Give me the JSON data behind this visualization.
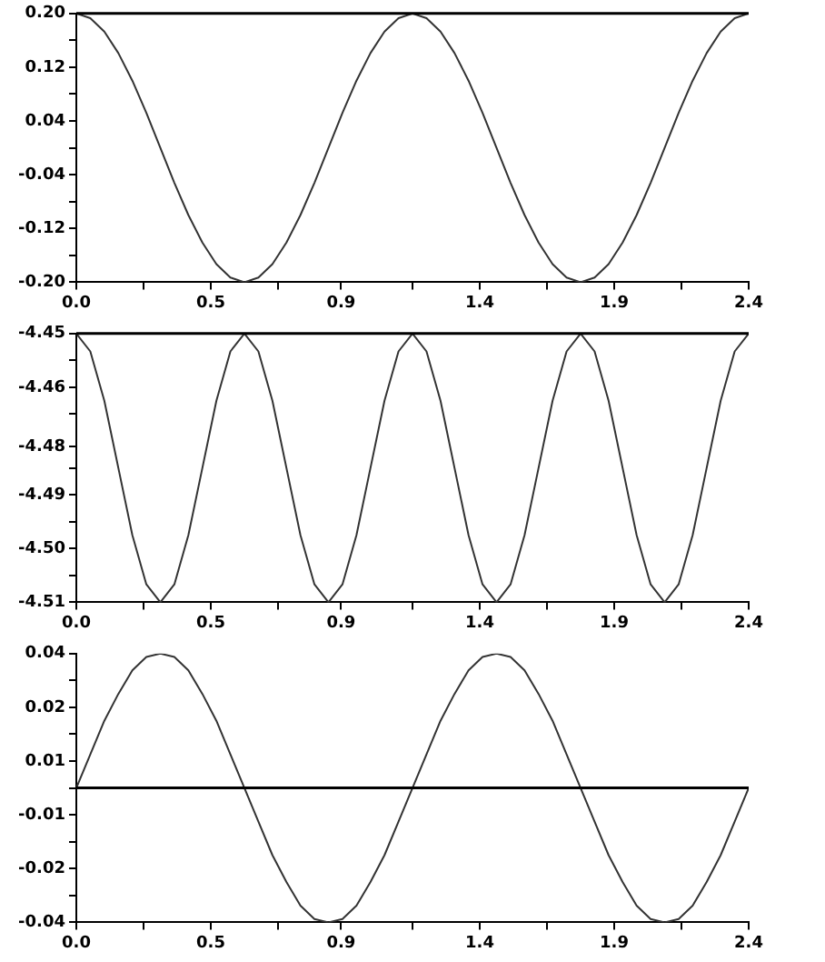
{
  "chart_data": [
    {
      "type": "line",
      "x": [
        0,
        0.05,
        0.1,
        0.15,
        0.2,
        0.25,
        0.3,
        0.35,
        0.4,
        0.45,
        0.5,
        0.55,
        0.6,
        0.65,
        0.7,
        0.75,
        0.8,
        0.85,
        0.9,
        0.95,
        1.0,
        1.05,
        1.1,
        1.15,
        1.2,
        1.25,
        1.3,
        1.35,
        1.4,
        1.45,
        1.5,
        1.55,
        1.6,
        1.65,
        1.7,
        1.75,
        1.8,
        1.85,
        1.9,
        1.95,
        2.0,
        2.05,
        2.1,
        2.15,
        2.2,
        2.25,
        2.3,
        2.35,
        2.4
      ],
      "series": [
        {
          "color": "#333333",
          "values": [
            0.2,
            0.193,
            0.173,
            0.141,
            0.1,
            0.052,
            0,
            -0.052,
            -0.1,
            -0.141,
            -0.173,
            -0.193,
            -0.2,
            -0.193,
            -0.173,
            -0.141,
            -0.1,
            -0.052,
            0,
            0.052,
            0.1,
            0.141,
            0.173,
            0.193,
            0.2,
            0.193,
            0.173,
            0.141,
            0.1,
            0.052,
            0,
            -0.052,
            -0.1,
            -0.141,
            -0.173,
            -0.193,
            -0.2,
            -0.193,
            -0.173,
            -0.141,
            -0.1,
            -0.052,
            0,
            0.052,
            0.1,
            0.141,
            0.173,
            0.193,
            0.2
          ]
        }
      ],
      "xlim": [
        0,
        2.4
      ],
      "xticks": [
        {
          "value": 0,
          "label": "0.0"
        },
        {
          "value": 0.24,
          "label": null
        },
        {
          "value": 0.48,
          "label": "0.5"
        },
        {
          "value": 0.72,
          "label": null
        },
        {
          "value": 0.945,
          "label": "0.9"
        },
        {
          "value": 1.2,
          "label": null
        },
        {
          "value": 1.44,
          "label": "1.4"
        },
        {
          "value": 1.68,
          "label": null
        },
        {
          "value": 1.92,
          "label": "1.9"
        },
        {
          "value": 2.16,
          "label": null
        },
        {
          "value": 2.4,
          "label": "2.4"
        }
      ],
      "ylim": [
        -0.2,
        0.2
      ],
      "yticks": [
        {
          "value": -0.2,
          "label": "-0.20"
        },
        {
          "value": -0.16,
          "label": null
        },
        {
          "value": -0.12,
          "label": "-0.12"
        },
        {
          "value": -0.08,
          "label": null
        },
        {
          "value": -0.04,
          "label": "-0.04"
        },
        {
          "value": 0,
          "label": null
        },
        {
          "value": 0.04,
          "label": "0.04"
        },
        {
          "value": 0.08,
          "label": null
        },
        {
          "value": 0.12,
          "label": "0.12"
        },
        {
          "value": 0.16,
          "label": null
        },
        {
          "value": 0.2,
          "label": "0.20"
        }
      ],
      "ref_lines": [
        {
          "axis": "y",
          "value": 0.2,
          "color": "#000000"
        }
      ],
      "grid": false,
      "legend": false
    },
    {
      "type": "line",
      "x": [
        0,
        0.05,
        0.1,
        0.15,
        0.2,
        0.25,
        0.3,
        0.35,
        0.4,
        0.45,
        0.5,
        0.55,
        0.6,
        0.65,
        0.7,
        0.75,
        0.8,
        0.85,
        0.9,
        0.95,
        1.0,
        1.05,
        1.1,
        1.15,
        1.2,
        1.25,
        1.3,
        1.35,
        1.4,
        1.45,
        1.5,
        1.55,
        1.6,
        1.65,
        1.7,
        1.75,
        1.8,
        1.85,
        1.9,
        1.95,
        2.0,
        2.05,
        2.1,
        2.15,
        2.2,
        2.25,
        2.3,
        2.35,
        2.4
      ],
      "series": [
        {
          "color": "#333333",
          "values": [
            -4.45,
            -4.454,
            -4.465,
            -4.48,
            -4.495,
            -4.506,
            -4.51,
            -4.506,
            -4.495,
            -4.48,
            -4.465,
            -4.454,
            -4.45,
            -4.454,
            -4.465,
            -4.48,
            -4.495,
            -4.506,
            -4.51,
            -4.506,
            -4.495,
            -4.48,
            -4.465,
            -4.454,
            -4.45,
            -4.454,
            -4.465,
            -4.48,
            -4.495,
            -4.506,
            -4.51,
            -4.506,
            -4.495,
            -4.48,
            -4.465,
            -4.454,
            -4.45,
            -4.454,
            -4.465,
            -4.48,
            -4.495,
            -4.506,
            -4.51,
            -4.506,
            -4.495,
            -4.48,
            -4.465,
            -4.454,
            -4.45
          ]
        }
      ],
      "xlim": [
        0,
        2.4
      ],
      "xticks": [
        {
          "value": 0,
          "label": "0.0"
        },
        {
          "value": 0.24,
          "label": null
        },
        {
          "value": 0.48,
          "label": "0.5"
        },
        {
          "value": 0.72,
          "label": null
        },
        {
          "value": 0.945,
          "label": "0.9"
        },
        {
          "value": 1.2,
          "label": null
        },
        {
          "value": 1.44,
          "label": "1.4"
        },
        {
          "value": 1.68,
          "label": null
        },
        {
          "value": 1.92,
          "label": "1.9"
        },
        {
          "value": 2.16,
          "label": null
        },
        {
          "value": 2.4,
          "label": "2.4"
        }
      ],
      "ylim": [
        -4.51,
        -4.45
      ],
      "yticks": [
        {
          "value": -4.51,
          "label": "-4.51"
        },
        {
          "value": -4.504,
          "label": null
        },
        {
          "value": -4.498,
          "label": "-4.50"
        },
        {
          "value": -4.492,
          "label": null
        },
        {
          "value": -4.486,
          "label": "-4.49"
        },
        {
          "value": -4.48,
          "label": null
        },
        {
          "value": -4.4752,
          "label": "-4.48"
        },
        {
          "value": -4.468,
          "label": null
        },
        {
          "value": -4.462,
          "label": "-4.46"
        },
        {
          "value": -4.456,
          "label": null
        },
        {
          "value": -4.45,
          "label": "-4.45"
        }
      ],
      "ref_lines": [
        {
          "axis": "y",
          "value": -4.45,
          "color": "#000000"
        }
      ],
      "grid": false,
      "legend": false
    },
    {
      "type": "line",
      "x": [
        0,
        0.05,
        0.1,
        0.15,
        0.2,
        0.25,
        0.3,
        0.35,
        0.4,
        0.45,
        0.5,
        0.55,
        0.6,
        0.65,
        0.7,
        0.75,
        0.8,
        0.85,
        0.9,
        0.95,
        1.0,
        1.05,
        1.1,
        1.15,
        1.2,
        1.25,
        1.3,
        1.35,
        1.4,
        1.45,
        1.5,
        1.55,
        1.6,
        1.65,
        1.7,
        1.75,
        1.8,
        1.85,
        1.9,
        1.95,
        2.0,
        2.05,
        2.1,
        2.15,
        2.2,
        2.25,
        2.3,
        2.35,
        2.4
      ],
      "series": [
        {
          "color": "#333333",
          "values": [
            0,
            0.01,
            0.02,
            0.028,
            0.035,
            0.039,
            0.04,
            0.039,
            0.035,
            0.028,
            0.02,
            0.01,
            0,
            -0.01,
            -0.02,
            -0.028,
            -0.035,
            -0.039,
            -0.04,
            -0.039,
            -0.035,
            -0.028,
            -0.02,
            -0.01,
            0,
            0.01,
            0.02,
            0.028,
            0.035,
            0.039,
            0.04,
            0.039,
            0.035,
            0.028,
            0.02,
            0.01,
            0,
            -0.01,
            -0.02,
            -0.028,
            -0.035,
            -0.039,
            -0.04,
            -0.039,
            -0.035,
            -0.028,
            -0.02,
            -0.01,
            0
          ]
        }
      ],
      "xlim": [
        0,
        2.4
      ],
      "xticks": [
        {
          "value": 0,
          "label": "0.0"
        },
        {
          "value": 0.24,
          "label": null
        },
        {
          "value": 0.48,
          "label": "0.5"
        },
        {
          "value": 0.72,
          "label": null
        },
        {
          "value": 0.945,
          "label": "0.9"
        },
        {
          "value": 1.2,
          "label": null
        },
        {
          "value": 1.44,
          "label": "1.4"
        },
        {
          "value": 1.68,
          "label": null
        },
        {
          "value": 1.92,
          "label": "1.9"
        },
        {
          "value": 2.16,
          "label": null
        },
        {
          "value": 2.4,
          "label": "2.4"
        }
      ],
      "ylim": [
        -0.04,
        0.04
      ],
      "yticks": [
        {
          "value": -0.04,
          "label": "-0.04"
        },
        {
          "value": -0.032,
          "label": null
        },
        {
          "value": -0.024,
          "label": "-0.02"
        },
        {
          "value": -0.016,
          "label": null
        },
        {
          "value": -0.008,
          "label": "-0.01"
        },
        {
          "value": 0,
          "label": null
        },
        {
          "value": 0.008,
          "label": "0.01"
        },
        {
          "value": 0.016,
          "label": null
        },
        {
          "value": 0.024,
          "label": "0.02"
        },
        {
          "value": 0.032,
          "label": null
        },
        {
          "value": 0.04,
          "label": "0.04"
        }
      ],
      "ref_lines": [
        {
          "axis": "y",
          "value": 0,
          "color": "#000000"
        }
      ],
      "grid": false,
      "legend": false
    }
  ]
}
